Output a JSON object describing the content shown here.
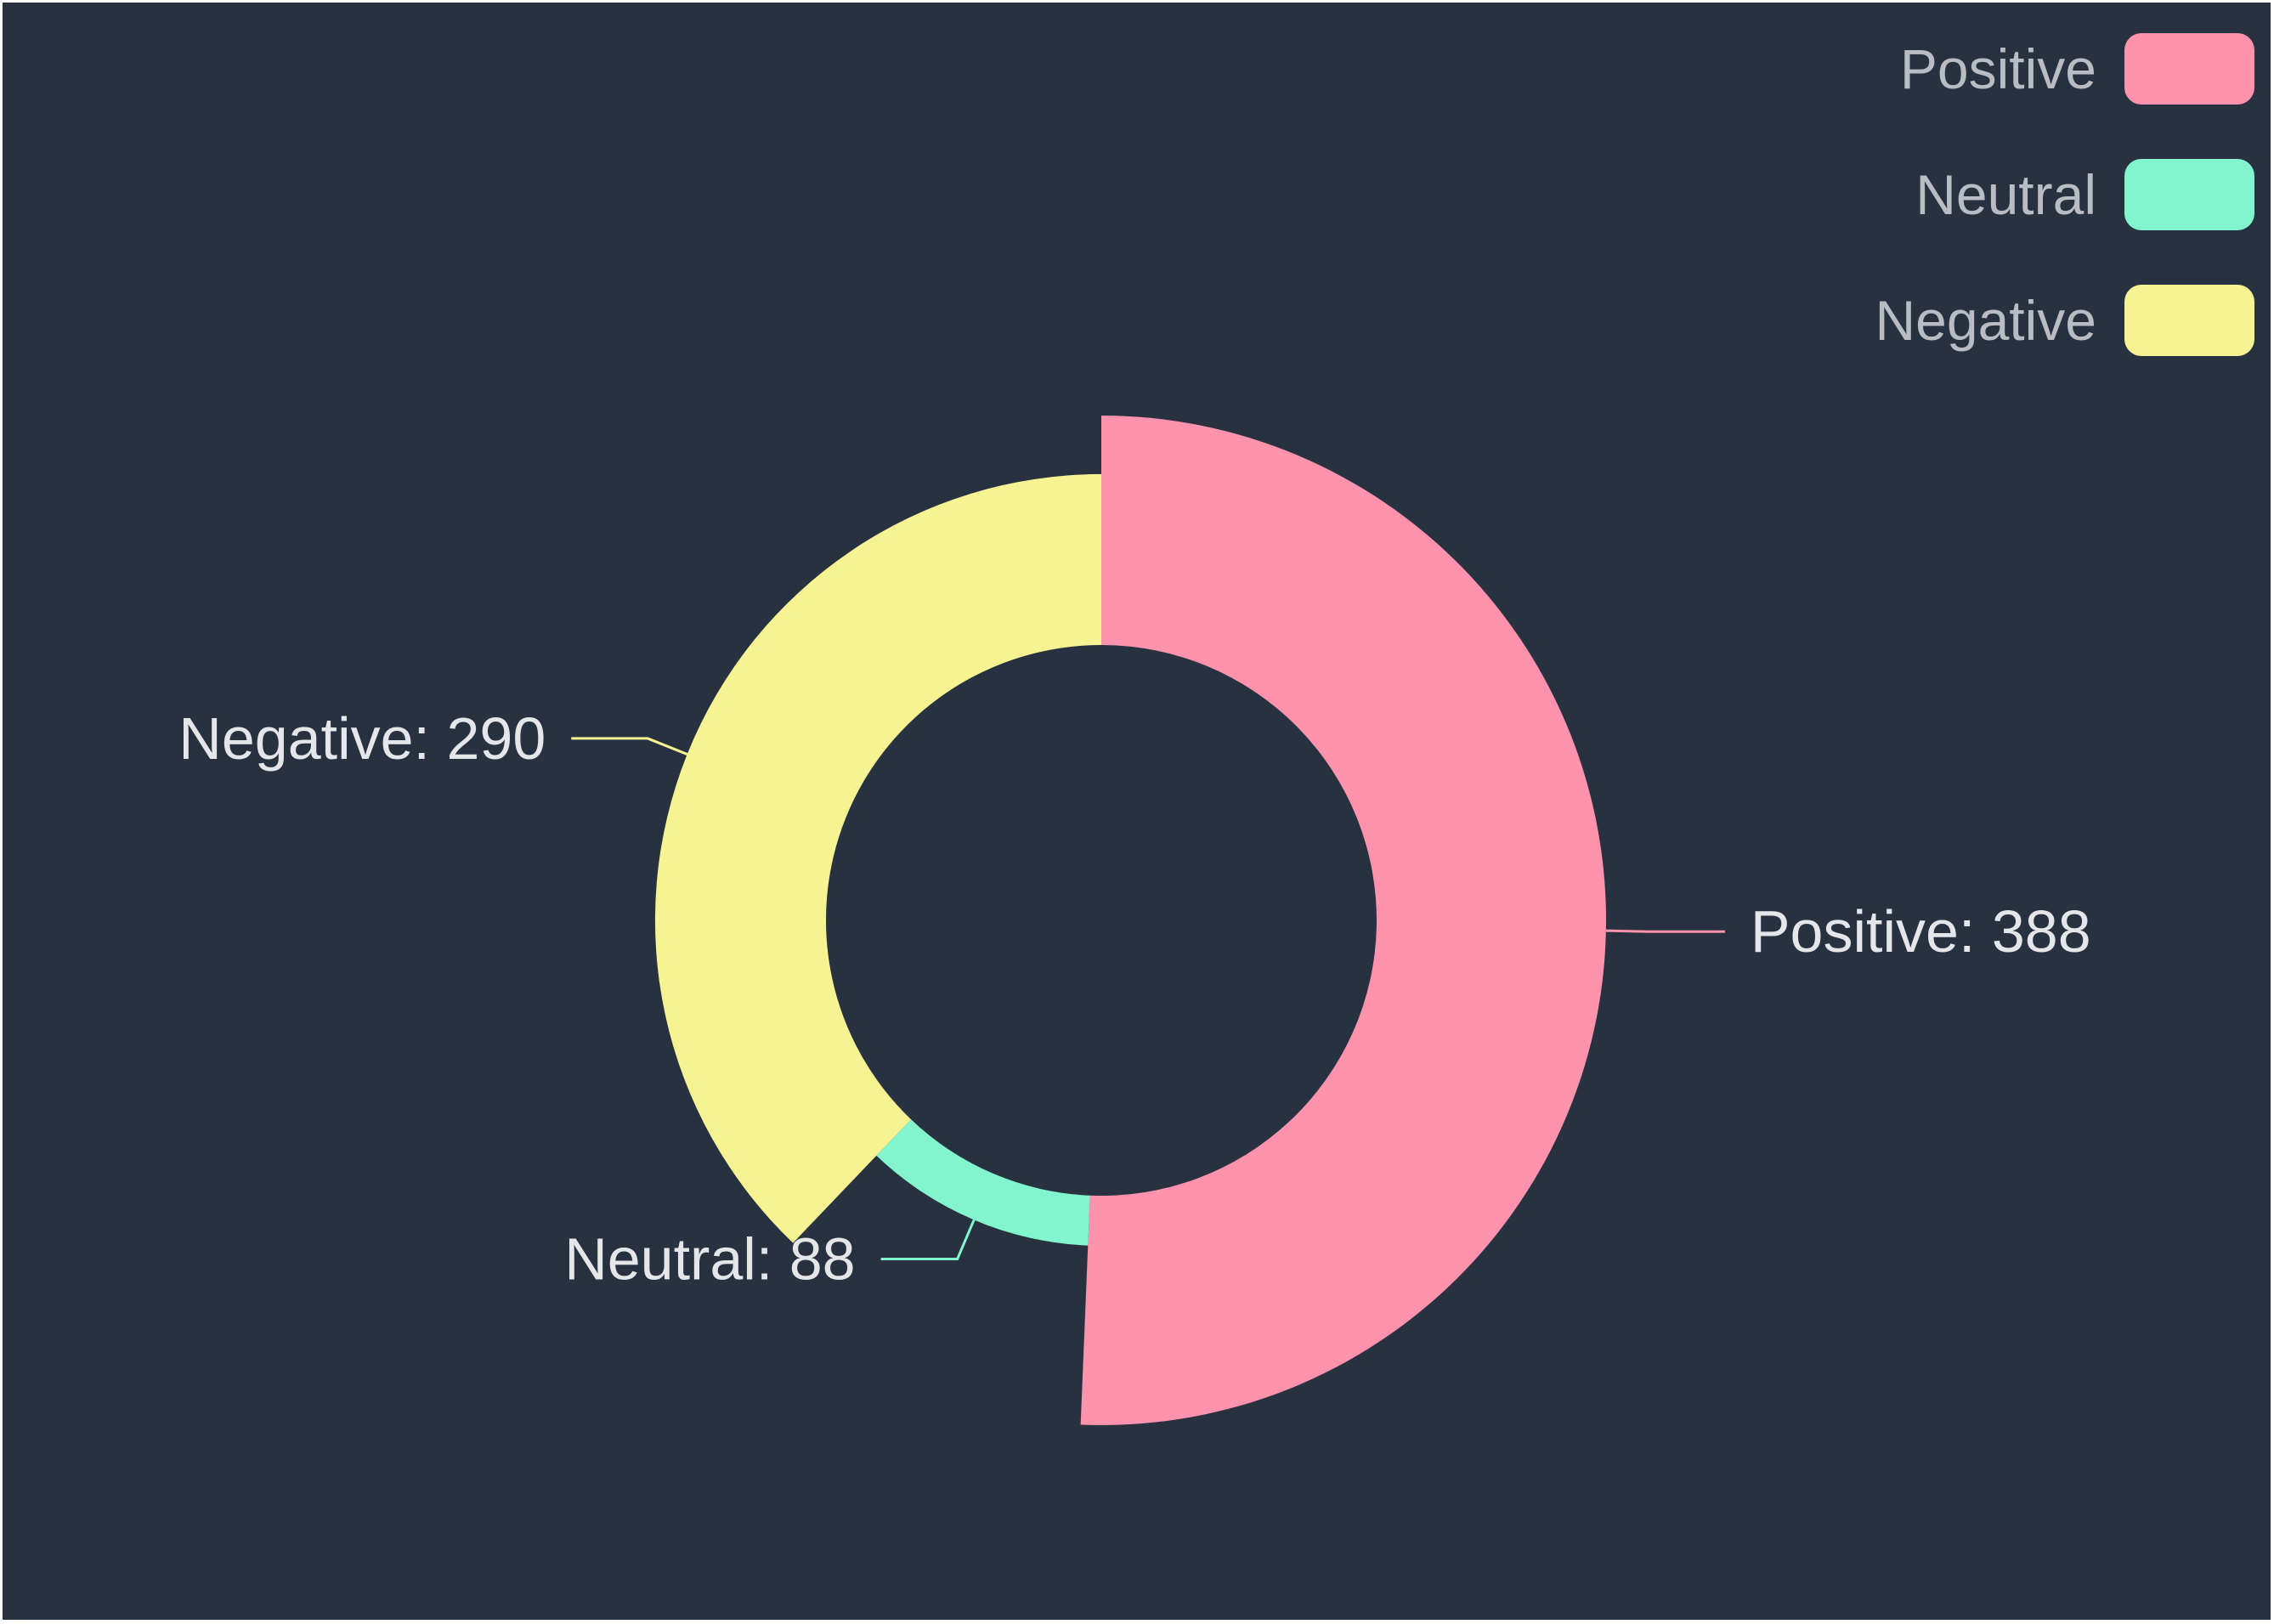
{
  "chart_data": {
    "type": "pie",
    "variant": "nightingale-rose-donut",
    "background": "#27313f",
    "legend_position": "top-right",
    "categories": [
      "Positive",
      "Neutral",
      "Negative"
    ],
    "values": [
      388,
      88,
      290
    ],
    "colors": [
      "#ff93ad",
      "#82f5cf",
      "#f7f393"
    ],
    "legend": [
      {
        "name": "Positive",
        "color": "#ff93ad"
      },
      {
        "name": "Neutral",
        "color": "#82f5cf"
      },
      {
        "name": "Negative",
        "color": "#f7f393"
      }
    ],
    "data_labels": [
      "Positive: 388",
      "Neutral: 88",
      "Negative: 290"
    ]
  }
}
